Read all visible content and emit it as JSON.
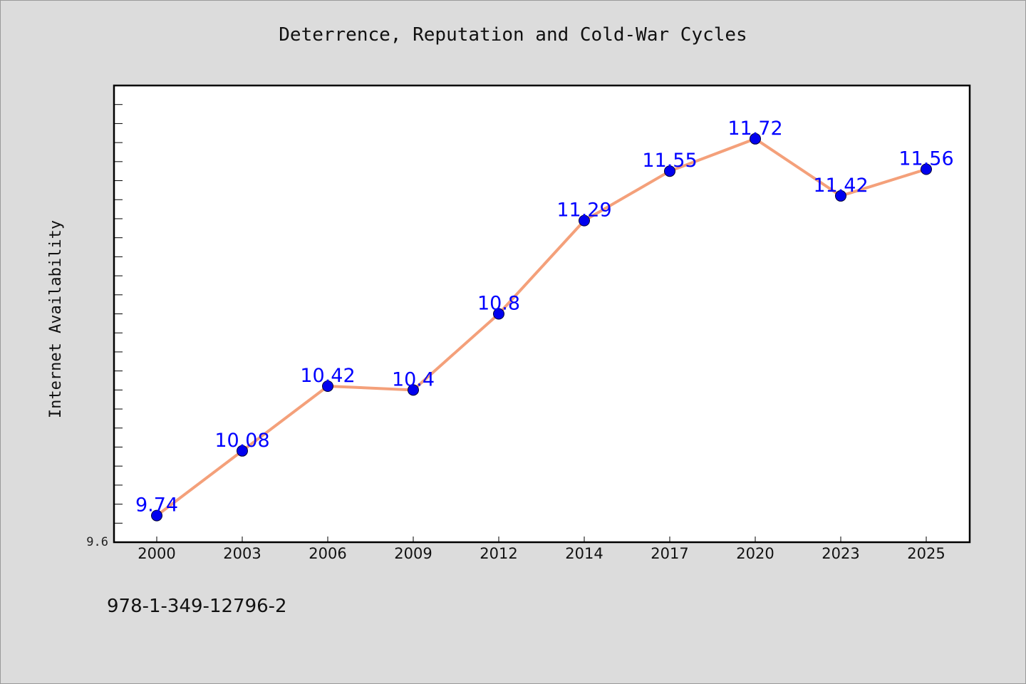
{
  "title": "Deterrence, Reputation and Cold-War Cycles",
  "footer_id": "978-1-349-12796-2",
  "chart_data": {
    "type": "line",
    "title": "Deterrence, Reputation and Cold-War Cycles",
    "xlabel": "",
    "ylabel": "Internet Availability",
    "categories": [
      "2000",
      "2003",
      "2006",
      "2009",
      "2012",
      "2014",
      "2017",
      "2020",
      "2023",
      "2025"
    ],
    "series": [
      {
        "values": [
          9.74,
          10.08,
          10.42,
          10.4,
          10.8,
          11.29,
          11.55,
          11.72,
          11.42,
          11.56
        ],
        "data_labels": [
          "9.74",
          "10.08",
          "10.42",
          "10.4",
          "10.8",
          "11.29",
          "11.55",
          "11.72",
          "11.42",
          "11.56"
        ]
      }
    ],
    "ylim": [
      9.6,
      12.0
    ],
    "y_tick_labels": [
      "9.6"
    ],
    "grid": false,
    "legend": "none",
    "colors": {
      "line": "#f4a07a",
      "marker": "#0000ee",
      "data_label": "#0000ff"
    }
  }
}
